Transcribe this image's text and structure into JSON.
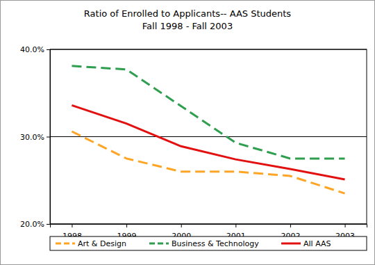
{
  "chart_data": {
    "type": "line",
    "title": "Ratio of Enrolled to Applicants-- AAS Students",
    "subtitle": "Fall 1998 - Fall 2003",
    "categories": [
      "1998",
      "1999",
      "2000",
      "2001",
      "2002",
      "2003"
    ],
    "series": [
      {
        "name": "Art & Design",
        "color": "#ffa526",
        "line_style": "dashed",
        "values": [
          30.6,
          27.5,
          26.0,
          26.0,
          25.5,
          23.5
        ]
      },
      {
        "name": "Business & Technology",
        "color": "#2f9e4f",
        "line_style": "dashed",
        "values": [
          38.1,
          37.7,
          33.5,
          29.3,
          27.5,
          27.5
        ]
      },
      {
        "name": "All AAS",
        "color": "#e31010",
        "line_style": "solid",
        "values": [
          33.6,
          31.5,
          28.9,
          27.4,
          26.3,
          25.1
        ]
      }
    ],
    "ylim": [
      20,
      40
    ],
    "yticks": [
      {
        "value": 20,
        "label": "20.0%"
      },
      {
        "value": 30,
        "label": "30.0%"
      },
      {
        "value": 40,
        "label": "40.0%"
      }
    ],
    "grid": true,
    "legend": "bottom"
  }
}
